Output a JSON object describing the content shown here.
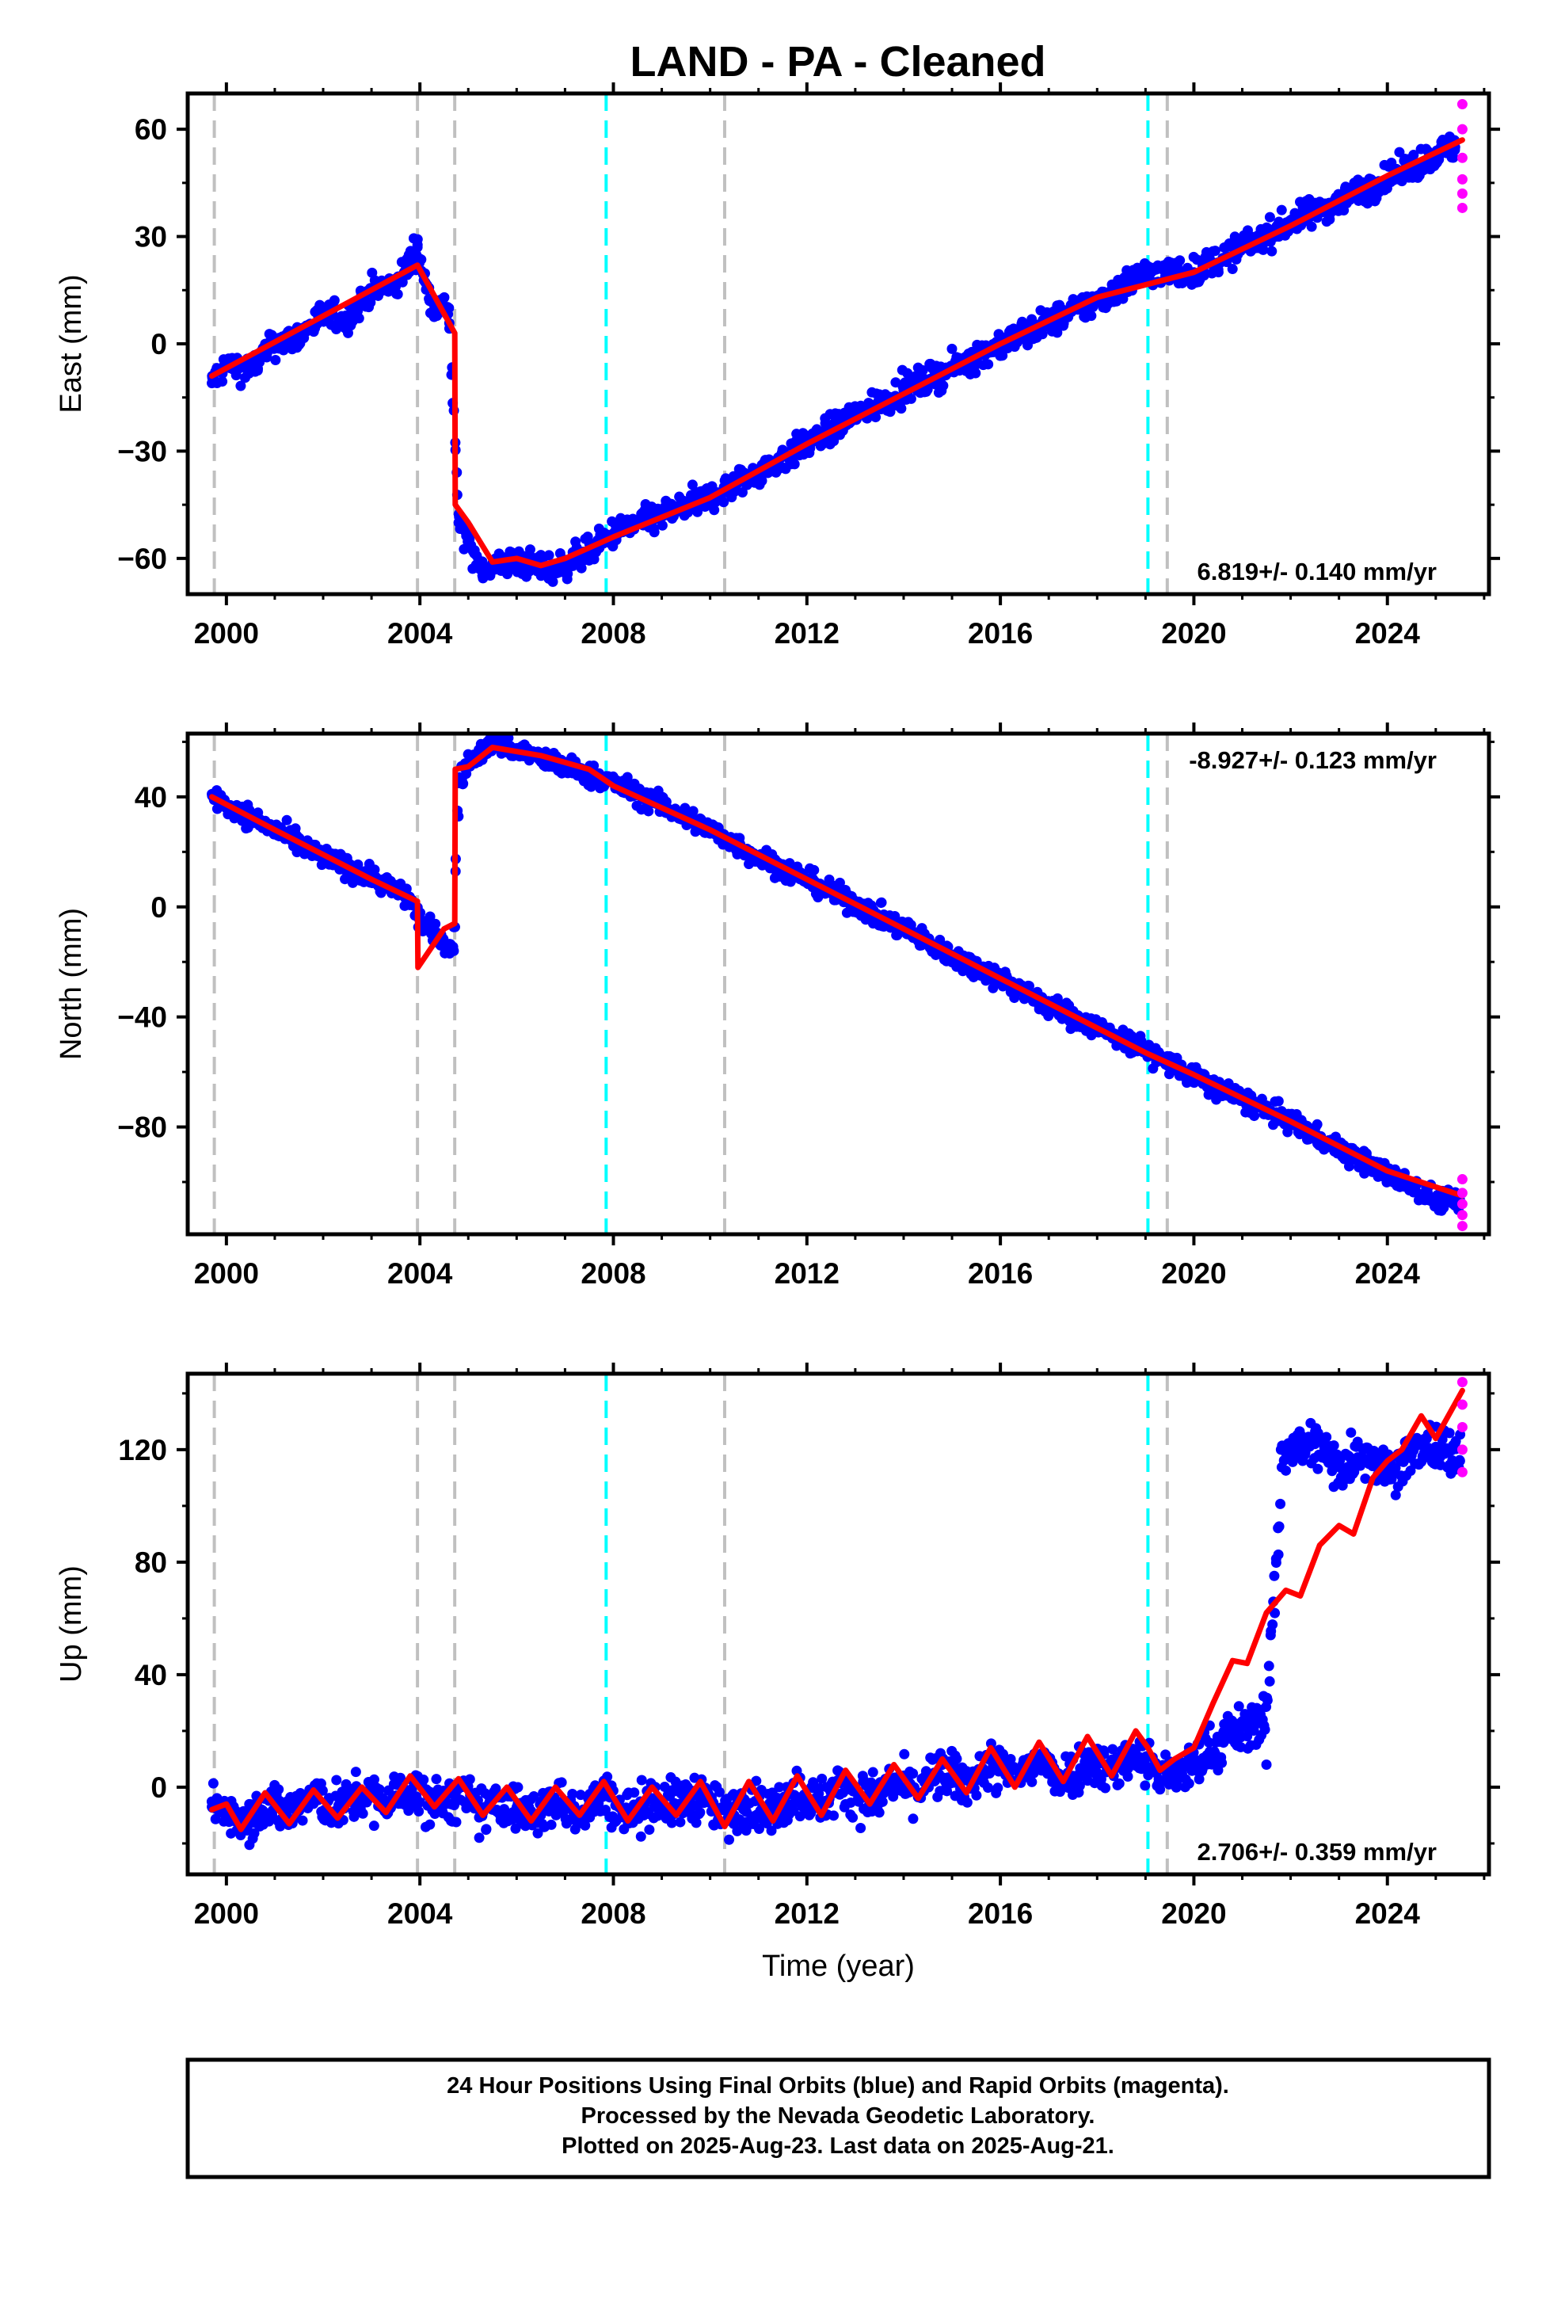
{
  "title": "LAND  - PA - Cleaned",
  "colors": {
    "final": "#0000ff",
    "rapid": "#ff00ff",
    "model": "#ff0000",
    "equipment_change": "#c0c0c0",
    "earthquake": "#00ffff"
  },
  "chart_data": [
    {
      "type": "scatter",
      "panel": "east",
      "ylabel": "East (mm)",
      "xlabel": "",
      "xlim": [
        1999.2,
        2026.1
      ],
      "ylim": [
        -70,
        70
      ],
      "yticks": [
        -60,
        -30,
        0,
        30,
        60
      ],
      "yticklabels": [
        "−60",
        "−30",
        "0",
        "30",
        "60"
      ],
      "xticks": [
        2000,
        2004,
        2008,
        2012,
        2016,
        2020,
        2024
      ],
      "xticklabels": [
        "2000",
        "2004",
        "2008",
        "2012",
        "2016",
        "2020",
        "2024"
      ],
      "rate_text": "6.819+/- 0.140 mm/yr",
      "rate_position": "bottom-right",
      "grey_lines": [
        1999.75,
        2003.95,
        2004.72,
        2010.3,
        2019.45
      ],
      "cyan_lines": [
        2007.85,
        2019.05
      ],
      "series": [
        {
          "role": "final",
          "x": [
            1999.7,
            2000.0,
            2000.5,
            2001.0,
            2001.5,
            2002.0,
            2002.5,
            2003.0,
            2003.5,
            2003.95,
            2004.2,
            2004.6,
            2004.8,
            2005.3,
            2006.0,
            2006.8,
            2007.5,
            2008.0,
            2009.0,
            2010.0,
            2011.0,
            2012.0,
            2013.0,
            2014.0,
            2015.0,
            2016.0,
            2017.0,
            2018.0,
            2019.0,
            2020.0,
            2021.0,
            2022.0,
            2023.0,
            2024.0,
            2025.0,
            2025.4
          ],
          "y": [
            -11,
            -6,
            -7,
            0,
            2,
            8,
            7,
            15,
            16,
            27,
            12,
            10,
            -50,
            -63,
            -61,
            -63,
            -58,
            -53,
            -48,
            -43,
            -36,
            -28,
            -20,
            -13,
            -7,
            0,
            6,
            12,
            20,
            20,
            27,
            34,
            40,
            46,
            53,
            55
          ]
        },
        {
          "role": "rapid",
          "x": [
            2025.55,
            2025.55,
            2025.55,
            2025.55,
            2025.55,
            2025.55
          ],
          "y": [
            67,
            60,
            52,
            46,
            42,
            38
          ]
        },
        {
          "role": "model",
          "x": [
            1999.7,
            2003.95,
            2004.72,
            2004.73,
            2005.0,
            2005.5,
            2006.0,
            2006.5,
            2007.0,
            2008.0,
            2010.0,
            2012.0,
            2014.0,
            2016.0,
            2018.0,
            2020.0,
            2022.0,
            2024.0,
            2025.55
          ],
          "y": [
            -9,
            22,
            3,
            -45,
            -50,
            -61,
            -60,
            -62,
            -60,
            -54,
            -43,
            -28,
            -14,
            0,
            13,
            20,
            33,
            47,
            57
          ]
        }
      ]
    },
    {
      "type": "scatter",
      "panel": "north",
      "ylabel": "North (mm)",
      "xlabel": "",
      "xlim": [
        1999.2,
        2026.1
      ],
      "ylim": [
        -119,
        63
      ],
      "yticks": [
        -80,
        -40,
        0,
        40
      ],
      "yticklabels": [
        "−80",
        "−40",
        "0",
        "40"
      ],
      "xticks": [
        2000,
        2004,
        2008,
        2012,
        2016,
        2020,
        2024
      ],
      "xticklabels": [
        "2000",
        "2004",
        "2008",
        "2012",
        "2016",
        "2020",
        "2024"
      ],
      "rate_text": "-8.927+/- 0.123 mm/yr",
      "rate_position": "top-right",
      "grey_lines": [
        1999.75,
        2003.95,
        2004.72,
        2010.3,
        2019.45
      ],
      "cyan_lines": [
        2007.85,
        2019.05
      ],
      "series": [
        {
          "role": "final",
          "x": [
            1999.7,
            2000.0,
            2001.0,
            2002.0,
            2003.0,
            2003.8,
            2004.0,
            2004.7,
            2004.8,
            2005.0,
            2005.5,
            2006.0,
            2007.0,
            2008.0,
            2009.0,
            2010.0,
            2011.0,
            2012.0,
            2013.0,
            2014.0,
            2015.0,
            2016.0,
            2017.0,
            2018.0,
            2019.0,
            2020.0,
            2021.0,
            2022.0,
            2023.0,
            2024.0,
            2025.0,
            2025.5
          ],
          "y": [
            41,
            37,
            28,
            18,
            11,
            3,
            -5,
            -16,
            45,
            52,
            60,
            57,
            51,
            45,
            37,
            28,
            18,
            10,
            1,
            -8,
            -18,
            -26,
            -36,
            -44,
            -52,
            -62,
            -70,
            -78,
            -88,
            -97,
            -106,
            -107
          ]
        },
        {
          "role": "rapid",
          "x": [
            2025.55,
            2025.55,
            2025.55,
            2025.55,
            2025.55
          ],
          "y": [
            -99,
            -104,
            -108,
            -112,
            -116
          ]
        },
        {
          "role": "model",
          "x": [
            1999.7,
            2001.0,
            2002.0,
            2003.0,
            2003.95,
            2003.96,
            2004.5,
            2004.72,
            2004.73,
            2005.0,
            2005.5,
            2006.5,
            2007.5,
            2008.0,
            2010.0,
            2012.0,
            2014.0,
            2016.0,
            2018.0,
            2019.0,
            2020.0,
            2022.0,
            2024.0,
            2025.55
          ],
          "y": [
            40,
            28,
            19,
            10,
            2,
            -22,
            -8,
            -6,
            50,
            51,
            58,
            55,
            50,
            44,
            28,
            10,
            -8,
            -26,
            -44,
            -53,
            -61,
            -78,
            -96,
            -105
          ]
        }
      ]
    },
    {
      "type": "scatter",
      "panel": "up",
      "ylabel": "Up (mm)",
      "xlabel": "Time (year)",
      "xlim": [
        1999.2,
        2026.1
      ],
      "ylim": [
        -31,
        147
      ],
      "yticks": [
        0,
        40,
        80,
        120
      ],
      "yticklabels": [
        "0",
        "40",
        "80",
        "120"
      ],
      "xticks": [
        2000,
        2004,
        2008,
        2012,
        2016,
        2020,
        2024
      ],
      "xticklabels": [
        "2000",
        "2004",
        "2008",
        "2012",
        "2016",
        "2020",
        "2024"
      ],
      "rate_text": "2.706+/- 0.359 mm/yr",
      "rate_position": "bottom-right",
      "grey_lines": [
        1999.75,
        2003.95,
        2004.72,
        2010.3,
        2019.45
      ],
      "cyan_lines": [
        2007.85,
        2019.05
      ],
      "series": [
        {
          "role": "final",
          "x": [
            1999.7,
            2000.5,
            2001.5,
            2002.5,
            2003.5,
            2004.5,
            2005.5,
            2006.5,
            2007.5,
            2008.5,
            2009.5,
            2010.5,
            2011.5,
            2012.5,
            2013.5,
            2014.5,
            2015.5,
            2016.5,
            2017.5,
            2018.5,
            2019.5,
            2020.5,
            2021.5,
            2021.8,
            2022.5,
            2023.0,
            2023.5,
            2024.0,
            2024.5,
            2025.0,
            2025.5
          ],
          "y": [
            -7,
            -10,
            -6,
            -5,
            -3,
            -6,
            -8,
            -10,
            -6,
            -8,
            -4,
            -10,
            -6,
            -2,
            -4,
            2,
            4,
            6,
            4,
            8,
            2,
            6,
            8,
            120,
            122,
            114,
            120,
            113,
            118,
            121,
            116
          ]
        },
        {
          "role": "rapid",
          "x": [
            2025.55,
            2025.55,
            2025.55,
            2025.55,
            2025.55
          ],
          "y": [
            144,
            136,
            128,
            120,
            112
          ]
        },
        {
          "role": "model",
          "x": [
            1999.7,
            2000.0,
            2000.3,
            2000.8,
            2001.3,
            2001.8,
            2002.3,
            2002.8,
            2003.3,
            2003.8,
            2004.3,
            2004.8,
            2005.3,
            2005.8,
            2006.3,
            2006.8,
            2007.3,
            2007.8,
            2008.3,
            2008.8,
            2009.3,
            2009.8,
            2010.3,
            2010.8,
            2011.3,
            2011.8,
            2012.3,
            2012.8,
            2013.3,
            2013.8,
            2014.3,
            2014.8,
            2015.3,
            2015.8,
            2016.3,
            2016.8,
            2017.3,
            2017.8,
            2018.3,
            2018.8,
            2019.05,
            2019.3,
            2019.6,
            2020.0,
            2020.4,
            2020.8,
            2021.1,
            2021.5,
            2021.9,
            2022.2,
            2022.6,
            2023.0,
            2023.3,
            2023.7,
            2024.0,
            2024.3,
            2024.7,
            2025.0,
            2025.55
          ],
          "y": [
            -8,
            -6,
            -15,
            -2,
            -13,
            -1,
            -11,
            0,
            -9,
            4,
            -7,
            3,
            -10,
            0,
            -12,
            0,
            -10,
            2,
            -12,
            0,
            -10,
            2,
            -14,
            2,
            -12,
            4,
            -10,
            6,
            -6,
            8,
            -4,
            10,
            -2,
            14,
            0,
            16,
            2,
            18,
            4,
            20,
            14,
            6,
            10,
            14,
            30,
            45,
            44,
            62,
            70,
            68,
            86,
            93,
            90,
            110,
            116,
            120,
            132,
            124,
            141
          ]
        }
      ]
    }
  ],
  "footer": {
    "line1": "24 Hour Positions Using Final Orbits (blue) and Rapid Orbits (magenta).",
    "line2": "Processed by the Nevada Geodetic Laboratory.",
    "line3": "Plotted on 2025-Aug-23. Last data on 2025-Aug-21."
  }
}
